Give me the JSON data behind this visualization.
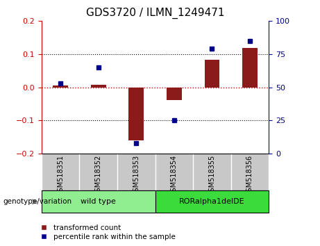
{
  "title": "GDS3720 / ILMN_1249471",
  "samples": [
    "GSM518351",
    "GSM518352",
    "GSM518353",
    "GSM518354",
    "GSM518355",
    "GSM518356"
  ],
  "red_bars": [
    0.005,
    0.007,
    -0.16,
    -0.038,
    0.083,
    0.118
  ],
  "blue_dots_pct": [
    53,
    65,
    8,
    25,
    79,
    85
  ],
  "red_bar_color": "#8B1A1A",
  "blue_dot_color": "#00008B",
  "ylim_left": [
    -0.2,
    0.2
  ],
  "ylim_right": [
    0,
    100
  ],
  "yticks_left": [
    -0.2,
    -0.1,
    0.0,
    0.1,
    0.2
  ],
  "yticks_right": [
    0,
    25,
    50,
    75,
    100
  ],
  "groups": [
    {
      "label": "wild type",
      "indices": [
        0,
        1,
        2
      ],
      "color": "#90EE90"
    },
    {
      "label": "RORalpha1delDE",
      "indices": [
        3,
        4,
        5
      ],
      "color": "#3ADB3A"
    }
  ],
  "genotype_label": "genotype/variation",
  "legend_red": "transformed count",
  "legend_blue": "percentile rank within the sample",
  "bg_plot": "#FFFFFF",
  "bg_xtick": "#C8C8C8",
  "zero_line_color": "#CC0000",
  "grid_color": "#000000"
}
